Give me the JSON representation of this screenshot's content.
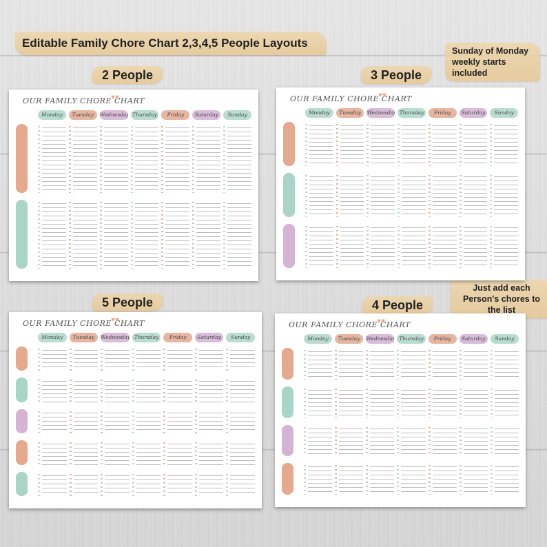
{
  "main_title": "Editable Family Chore Chart 2,3,4,5 People Layouts",
  "note_top": "Sunday of Monday weekly starts included",
  "note_bottom": "Just add each Person's chores to the list",
  "sheet_title": "OUR FAMILY CHORE CHART",
  "days": [
    "Monday",
    "Tuesday",
    "Wednesday",
    "Thursday",
    "Friday",
    "Saturday",
    "Sunday"
  ],
  "colors": {
    "green": "#b9ddd0",
    "peach": "#e7b6a0",
    "purple": "#d9bcd9",
    "person_peach": "#e4a98f",
    "person_green": "#a9d5c7",
    "person_purple": "#d4b3d4"
  },
  "layouts": [
    {
      "label": "2 People",
      "persons": [
        "peach",
        "green"
      ],
      "day_colors": [
        "green",
        "peach",
        "purple",
        "green",
        "peach",
        "purple",
        "green"
      ]
    },
    {
      "label": "3 People",
      "persons": [
        "peach",
        "green",
        "purple"
      ],
      "day_colors": [
        "green",
        "peach",
        "purple",
        "green",
        "peach",
        "purple",
        "green"
      ]
    },
    {
      "label": "5 People",
      "persons": [
        "peach",
        "green",
        "purple",
        "peach",
        "green"
      ],
      "day_colors": [
        "green",
        "peach",
        "purple",
        "green",
        "peach",
        "purple",
        "green"
      ]
    },
    {
      "label": "4 People",
      "persons": [
        "peach",
        "green",
        "purple",
        "peach"
      ],
      "day_colors": [
        "green",
        "peach",
        "purple",
        "green",
        "peach",
        "purple",
        "green"
      ]
    }
  ]
}
